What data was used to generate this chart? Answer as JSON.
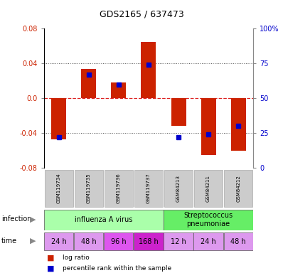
{
  "title": "GDS2165 / 637473",
  "samples": [
    "GSM119734",
    "GSM119735",
    "GSM119736",
    "GSM119737",
    "GSM84213",
    "GSM84211",
    "GSM84212"
  ],
  "log_ratios": [
    -0.047,
    0.034,
    0.018,
    0.065,
    -0.032,
    -0.065,
    -0.06
  ],
  "percentile_ranks": [
    0.22,
    0.67,
    0.6,
    0.74,
    0.22,
    0.24,
    0.3
  ],
  "bar_color": "#cc2200",
  "dot_color": "#0000cc",
  "ylim": [
    -0.08,
    0.08
  ],
  "yticks_left": [
    -0.08,
    -0.04,
    0.0,
    0.04,
    0.08
  ],
  "yticks_right": [
    0,
    25,
    50,
    75,
    100
  ],
  "grid_yticks": [
    -0.04,
    0.04
  ],
  "zero_line_color": "#dd2222",
  "grid_color": "#555555",
  "bar_width": 0.5,
  "dot_size": 4,
  "infection_groups": [
    {
      "label": "influenza A virus",
      "start": 0,
      "end": 4,
      "color": "#aaffaa"
    },
    {
      "label": "Streptococcus\npneumoniae",
      "start": 4,
      "end": 7,
      "color": "#66ee66"
    }
  ],
  "time_labels": [
    "24 h",
    "48 h",
    "96 h",
    "168 h",
    "12 h",
    "24 h",
    "48 h"
  ],
  "time_colors": [
    "#dd99ee",
    "#dd99ee",
    "#dd55ee",
    "#cc22cc",
    "#dd99ee",
    "#dd99ee",
    "#dd99ee"
  ],
  "sample_bg_color": "#cccccc",
  "sample_edge_color": "#aaaaaa",
  "left_label_color": "#cc2200",
  "right_label_color": "#0000cc",
  "legend_red_label": "log ratio",
  "legend_blue_label": "percentile rank within the sample",
  "title_fontsize": 9,
  "tick_fontsize": 7,
  "sample_fontsize": 5,
  "annot_fontsize": 7,
  "time_fontsize": 7,
  "infection_fontsize": 7
}
